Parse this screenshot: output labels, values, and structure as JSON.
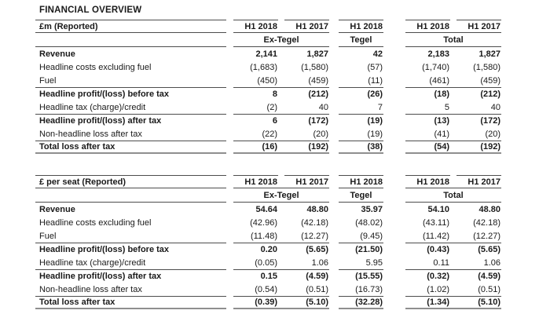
{
  "page": {
    "title": "FINANCIAL OVERVIEW"
  },
  "colors": {
    "text": "#1a1a1a",
    "rule": "#4d4d4d",
    "heavy_rule": "#8f8f8f"
  },
  "tables": [
    {
      "unit_label": "£m (Reported)",
      "column_headers": [
        "H1 2018",
        "H1 2017",
        "H1 2018",
        "H1 2018",
        "H1 2017"
      ],
      "group_headers": [
        "Ex-Tegel",
        "Tegel",
        "Total"
      ],
      "rows": [
        {
          "label": "Revenue",
          "bold": true,
          "values": [
            "2,141",
            "1,827",
            "42",
            "2,183",
            "1,827"
          ]
        },
        {
          "label": "Headline costs excluding fuel",
          "bold": false,
          "values": [
            "(1,683)",
            "(1,580)",
            "(57)",
            "(1,740)",
            "(1,580)"
          ]
        },
        {
          "label": "Fuel",
          "bold": false,
          "values": [
            "(450)",
            "(459)",
            "(11)",
            "(461)",
            "(459)"
          ]
        },
        {
          "label": "Headline profit/(loss) before tax",
          "bold": true,
          "top_line": true,
          "values": [
            "8",
            "(212)",
            "(26)",
            "(18)",
            "(212)"
          ]
        },
        {
          "label": "Headline tax (charge)/credit",
          "bold": false,
          "values": [
            "(2)",
            "40",
            "7",
            "5",
            "40"
          ]
        },
        {
          "label": "Headline profit/(loss) after tax",
          "bold": true,
          "top_line": true,
          "values": [
            "6",
            "(172)",
            "(19)",
            "(13)",
            "(172)"
          ]
        },
        {
          "label": "Non-headline loss after tax",
          "bold": false,
          "values": [
            "(22)",
            "(20)",
            "(19)",
            "(41)",
            "(20)"
          ]
        },
        {
          "label": "Total loss after tax",
          "bold": true,
          "top_line": true,
          "bottom_line": true,
          "values": [
            "(16)",
            "(192)",
            "(38)",
            "(54)",
            "(192)"
          ]
        }
      ]
    },
    {
      "unit_label": "£ per seat (Reported)",
      "column_headers": [
        "H1 2018",
        "H1 2017",
        "H1 2018",
        "H1 2018",
        "H1 2017"
      ],
      "group_headers": [
        "Ex-Tegel",
        "Tegel",
        "Total"
      ],
      "rows": [
        {
          "label": "Revenue",
          "bold": true,
          "values": [
            "54.64",
            "48.80",
            "35.97",
            "54.10",
            "48.80"
          ]
        },
        {
          "label": "Headline costs excluding fuel",
          "bold": false,
          "values": [
            "(42.96)",
            "(42.18)",
            "(48.02)",
            "(43.11)",
            "(42.18)"
          ]
        },
        {
          "label": "Fuel",
          "bold": false,
          "values": [
            "(11.48)",
            "(12.27)",
            "(9.45)",
            "(11.42)",
            "(12.27)"
          ]
        },
        {
          "label": "Headline profit/(loss) before tax",
          "bold": true,
          "top_line": true,
          "values": [
            "0.20",
            "(5.65)",
            "(21.50)",
            "(0.43)",
            "(5.65)"
          ]
        },
        {
          "label": "Headline tax (charge)/credit",
          "bold": false,
          "values": [
            "(0.05)",
            "1.06",
            "5.95",
            "0.11",
            "1.06"
          ]
        },
        {
          "label": "Headline profit/(loss) after tax",
          "bold": true,
          "top_line": true,
          "values": [
            "0.15",
            "(4.59)",
            "(15.55)",
            "(0.32)",
            "(4.59)"
          ]
        },
        {
          "label": "Non-headline loss after tax",
          "bold": false,
          "values": [
            "(0.54)",
            "(0.51)",
            "(16.73)",
            "(1.02)",
            "(0.51)"
          ]
        },
        {
          "label": "Total loss after tax",
          "bold": true,
          "top_line": true,
          "bottom_line": true,
          "values": [
            "(0.39)",
            "(5.10)",
            "(32.28)",
            "(1.34)",
            "(5.10)"
          ]
        }
      ]
    }
  ]
}
